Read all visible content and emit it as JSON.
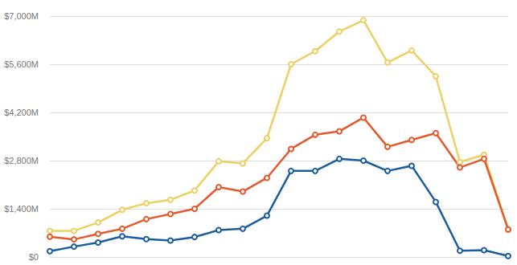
{
  "chart_data": {
    "type": "line",
    "categories": [
      null,
      null,
      null,
      null,
      null,
      null,
      null,
      null,
      null,
      null,
      null,
      null,
      null,
      null,
      null,
      null,
      null,
      null,
      null,
      null
    ],
    "series": [
      {
        "color": "#ecd064",
        "values": [
          760,
          760,
          1000,
          1370,
          1560,
          1660,
          1930,
          2780,
          2720,
          3450,
          5600,
          5980,
          6550,
          6880,
          5650,
          6000,
          5250,
          2760,
          2970,
          800
        ]
      },
      {
        "color": "#e2592b",
        "values": [
          590,
          510,
          670,
          820,
          1100,
          1250,
          1400,
          2030,
          1900,
          2300,
          3140,
          3550,
          3650,
          4050,
          3200,
          3400,
          3600,
          2600,
          2850,
          800
        ]
      },
      {
        "color": "#1b5c9e",
        "values": [
          170,
          300,
          420,
          600,
          520,
          480,
          580,
          780,
          820,
          1200,
          2500,
          2500,
          2850,
          2800,
          2500,
          2650,
          1600,
          180,
          200,
          30
        ]
      }
    ],
    "ylim": [
      0,
      7000
    ],
    "yticks": [
      {
        "value": 0,
        "label": "$0"
      },
      {
        "value": 1400,
        "label": "$1,400M"
      },
      {
        "value": 2800,
        "label": "$2,800M"
      },
      {
        "value": 4200,
        "label": "$4,200M"
      },
      {
        "value": 5600,
        "label": "$5,600M"
      },
      {
        "value": 7000,
        "label": "$7,000M"
      }
    ],
    "grid": true,
    "marker": "circle",
    "tick_labels": "y"
  }
}
